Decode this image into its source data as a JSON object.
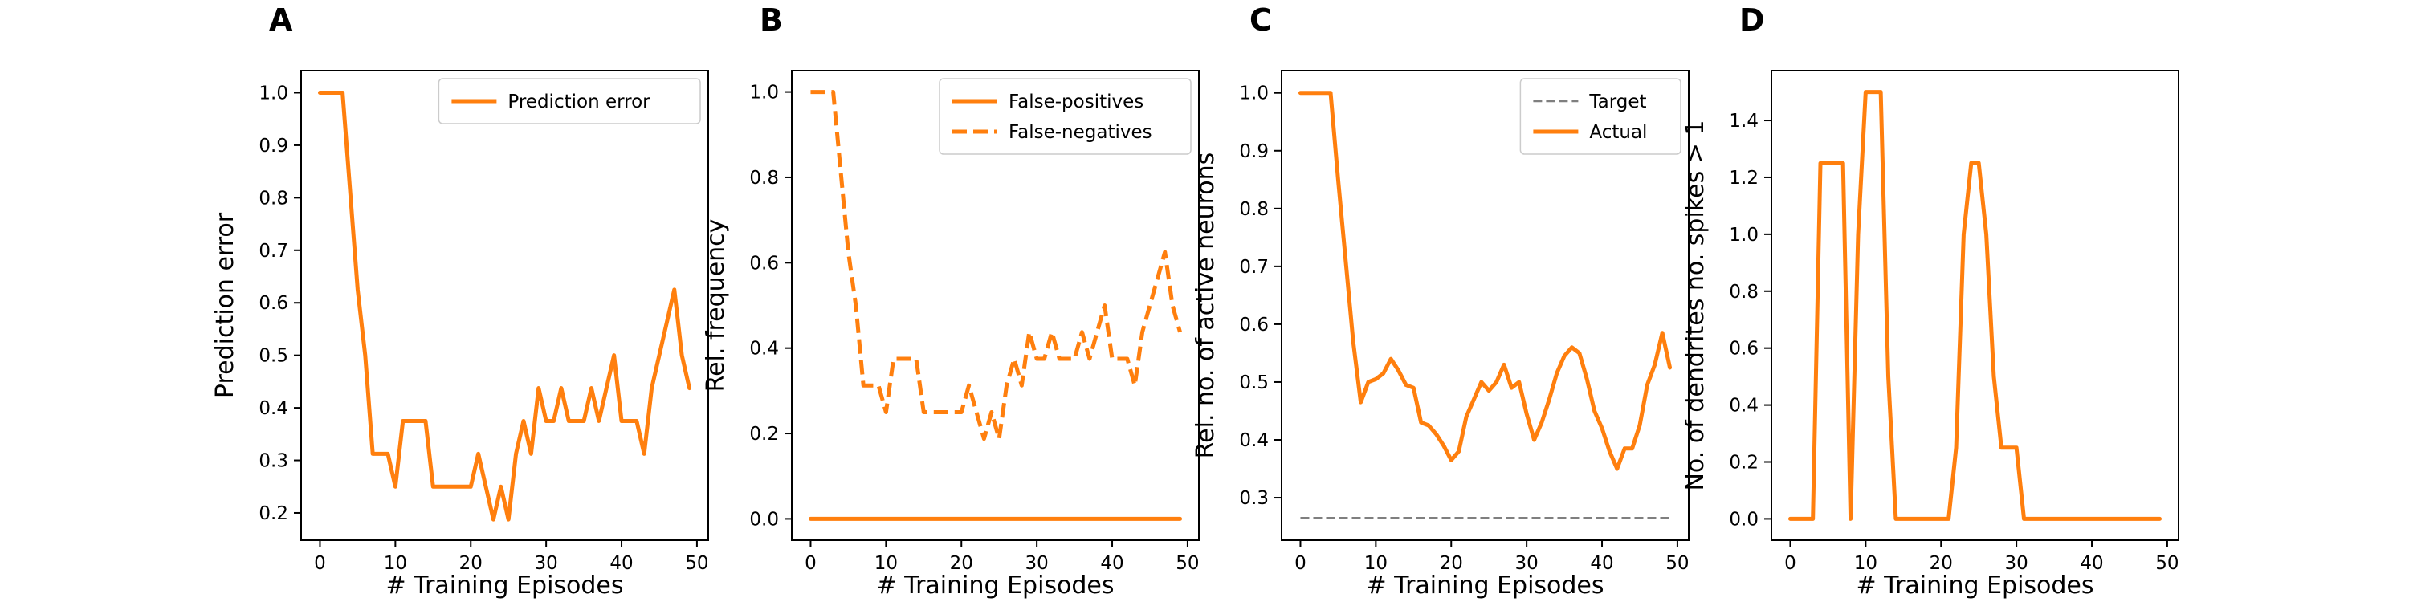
{
  "figure": {
    "panels": [
      "A",
      "B",
      "C",
      "D"
    ]
  },
  "chart_data": [
    {
      "panel": "A",
      "type": "line",
      "xlabel": "# Training Episodes",
      "ylabel": "Prediction error",
      "xlim": [
        -2.5,
        51.5
      ],
      "ylim": [
        0.148,
        1.042
      ],
      "xticks": [
        0,
        10,
        20,
        30,
        40,
        50
      ],
      "yticks": [
        0.2,
        0.3,
        0.4,
        0.5,
        0.6,
        0.7,
        0.8,
        0.9,
        1.0
      ],
      "ytick_labels": [
        "0.2",
        "0.3",
        "0.4",
        "0.5",
        "0.6",
        "0.7",
        "0.8",
        "0.9",
        "1.0"
      ],
      "legend": "top-right",
      "series": [
        {
          "name": "Prediction error",
          "color": "#ff7f0e",
          "style": "solid",
          "x": [
            0,
            1,
            2,
            3,
            4,
            5,
            6,
            7,
            8,
            9,
            10,
            11,
            12,
            13,
            14,
            15,
            16,
            17,
            18,
            19,
            20,
            21,
            22,
            23,
            24,
            25,
            26,
            27,
            28,
            29,
            30,
            31,
            32,
            33,
            34,
            35,
            36,
            37,
            38,
            39,
            40,
            41,
            42,
            43,
            44,
            45,
            46,
            47,
            48,
            49
          ],
          "y": [
            1.0,
            1.0,
            1.0,
            1.0,
            0.8125,
            0.625,
            0.5,
            0.3125,
            0.3125,
            0.3125,
            0.25,
            0.375,
            0.375,
            0.375,
            0.375,
            0.25,
            0.25,
            0.25,
            0.25,
            0.25,
            0.25,
            0.3125,
            0.25,
            0.1875,
            0.25,
            0.1875,
            0.3125,
            0.375,
            0.3125,
            0.4375,
            0.375,
            0.375,
            0.4375,
            0.375,
            0.375,
            0.375,
            0.4375,
            0.375,
            0.4375,
            0.5,
            0.375,
            0.375,
            0.375,
            0.3125,
            0.4375,
            0.5,
            0.5625,
            0.625,
            0.5,
            0.4375
          ]
        }
      ]
    },
    {
      "panel": "B",
      "type": "line",
      "xlabel": "# Training Episodes",
      "ylabel": "Rel. frequency",
      "xlim": [
        -2.5,
        51.5
      ],
      "ylim": [
        -0.05,
        1.05
      ],
      "xticks": [
        0,
        10,
        20,
        30,
        40,
        50
      ],
      "yticks": [
        0.0,
        0.2,
        0.4,
        0.6,
        0.8,
        1.0
      ],
      "ytick_labels": [
        "0.0",
        "0.2",
        "0.4",
        "0.6",
        "0.8",
        "1.0"
      ],
      "legend": "top-right",
      "series": [
        {
          "name": "False-positives",
          "color": "#ff7f0e",
          "style": "solid",
          "x": [
            0,
            49
          ],
          "y": [
            0.0,
            0.0
          ]
        },
        {
          "name": "False-negatives",
          "color": "#ff7f0e",
          "style": "dashed",
          "x": [
            0,
            1,
            2,
            3,
            4,
            5,
            6,
            7,
            8,
            9,
            10,
            11,
            12,
            13,
            14,
            15,
            16,
            17,
            18,
            19,
            20,
            21,
            22,
            23,
            24,
            25,
            26,
            27,
            28,
            29,
            30,
            31,
            32,
            33,
            34,
            35,
            36,
            37,
            38,
            39,
            40,
            41,
            42,
            43,
            44,
            45,
            46,
            47,
            48,
            49
          ],
          "y": [
            1.0,
            1.0,
            1.0,
            1.0,
            0.8125,
            0.625,
            0.5,
            0.3125,
            0.3125,
            0.3125,
            0.25,
            0.375,
            0.375,
            0.375,
            0.375,
            0.25,
            0.25,
            0.25,
            0.25,
            0.25,
            0.25,
            0.3125,
            0.25,
            0.1875,
            0.25,
            0.1875,
            0.3125,
            0.375,
            0.3125,
            0.4375,
            0.375,
            0.375,
            0.4375,
            0.375,
            0.375,
            0.375,
            0.4375,
            0.375,
            0.4375,
            0.5,
            0.375,
            0.375,
            0.375,
            0.3125,
            0.4375,
            0.5,
            0.5625,
            0.625,
            0.5,
            0.4375
          ]
        }
      ]
    },
    {
      "panel": "C",
      "type": "line",
      "xlabel": "# Training Episodes",
      "ylabel": "Rel. no. of active neurons",
      "xlim": [
        -2.5,
        51.5
      ],
      "ylim": [
        0.2265,
        1.0385
      ],
      "xticks": [
        0,
        10,
        20,
        30,
        40,
        50
      ],
      "yticks": [
        0.3,
        0.4,
        0.5,
        0.6,
        0.7,
        0.8,
        0.9,
        1.0
      ],
      "ytick_labels": [
        "0.3",
        "0.4",
        "0.5",
        "0.6",
        "0.7",
        "0.8",
        "0.9",
        "1.0"
      ],
      "legend": "top-right",
      "series": [
        {
          "name": "Target",
          "color": "#7f7f7f",
          "style": "dashed",
          "x": [
            0,
            49
          ],
          "y": [
            0.265,
            0.265
          ]
        },
        {
          "name": "Actual",
          "color": "#ff7f0e",
          "style": "solid",
          "x": [
            0,
            1,
            2,
            3,
            4,
            5,
            6,
            7,
            8,
            9,
            10,
            11,
            12,
            13,
            14,
            15,
            16,
            17,
            18,
            19,
            20,
            21,
            22,
            23,
            24,
            25,
            26,
            27,
            28,
            29,
            30,
            31,
            32,
            33,
            34,
            35,
            36,
            37,
            38,
            39,
            40,
            41,
            42,
            43,
            44,
            45,
            46,
            47,
            48,
            49
          ],
          "y": [
            1.0,
            1.0,
            1.0,
            1.0,
            1.0,
            0.85,
            0.71,
            0.57,
            0.465,
            0.5,
            0.505,
            0.515,
            0.54,
            0.52,
            0.495,
            0.49,
            0.43,
            0.425,
            0.41,
            0.39,
            0.365,
            0.38,
            0.44,
            0.47,
            0.5,
            0.485,
            0.5,
            0.53,
            0.49,
            0.5,
            0.445,
            0.4,
            0.43,
            0.47,
            0.515,
            0.545,
            0.56,
            0.55,
            0.505,
            0.45,
            0.42,
            0.38,
            0.35,
            0.385,
            0.385,
            0.425,
            0.495,
            0.53,
            0.585,
            0.525
          ]
        }
      ]
    },
    {
      "panel": "D",
      "type": "line",
      "xlabel": "# Training Episodes",
      "ylabel": "No. of dendrites no. spikes > 1",
      "xlim": [
        -2.5,
        51.5
      ],
      "ylim": [
        -0.075,
        1.575
      ],
      "xticks": [
        0,
        10,
        20,
        30,
        40,
        50
      ],
      "yticks": [
        0.0,
        0.2,
        0.4,
        0.6,
        0.8,
        1.0,
        1.2,
        1.4
      ],
      "ytick_labels": [
        "0.0",
        "0.2",
        "0.4",
        "0.6",
        "0.8",
        "1.0",
        "1.2",
        "1.4"
      ],
      "legend": "none",
      "series": [
        {
          "color": "#ff7f0e",
          "style": "solid",
          "x": [
            0,
            1,
            2,
            3,
            4,
            5,
            6,
            7,
            8,
            9,
            10,
            11,
            12,
            13,
            14,
            15,
            16,
            17,
            18,
            19,
            20,
            21,
            22,
            23,
            24,
            25,
            26,
            27,
            28,
            29,
            30,
            31,
            32,
            33,
            34,
            35,
            36,
            37,
            38,
            39,
            40,
            41,
            42,
            43,
            44,
            45,
            46,
            47,
            48,
            49
          ],
          "y": [
            0,
            0,
            0,
            0,
            1.25,
            1.25,
            1.25,
            1.25,
            0,
            1.0,
            1.5,
            1.5,
            1.5,
            0.5,
            0,
            0,
            0,
            0,
            0,
            0,
            0,
            0,
            0.25,
            1.0,
            1.25,
            1.25,
            1.0,
            0.5,
            0.25,
            0.25,
            0.25,
            0,
            0,
            0,
            0,
            0,
            0,
            0,
            0,
            0,
            0,
            0,
            0,
            0,
            0,
            0,
            0,
            0,
            0,
            0
          ]
        }
      ]
    }
  ]
}
